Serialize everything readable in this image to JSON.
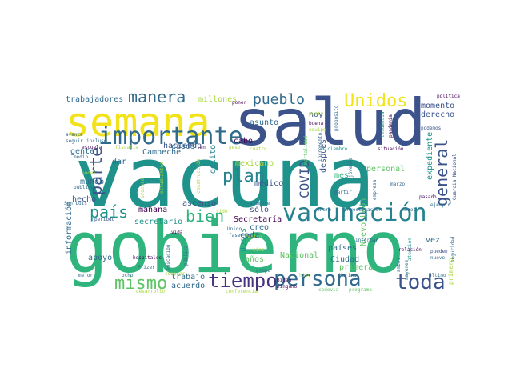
{
  "palette": {
    "yellow": "#f2e21a",
    "lime": "#a6d63d",
    "green": "#5cc463",
    "emerald": "#2fb47d",
    "teal": "#1f928c",
    "cyan": "#25828e",
    "steel": "#306b8e",
    "navy": "#3b528b",
    "indigo": "#46327e",
    "purple": "#440154"
  },
  "words": [
    {
      "text": "vacuna"
    },
    {
      "text": "gobierno"
    },
    {
      "text": "salud"
    },
    {
      "text": "semana"
    },
    {
      "text": "vacunación"
    },
    {
      "text": "importante"
    },
    {
      "text": "persona"
    },
    {
      "text": "tiempo"
    },
    {
      "text": "toda"
    },
    {
      "text": "mismo"
    },
    {
      "text": "manera"
    },
    {
      "text": "Unidos"
    },
    {
      "text": "pueblo"
    },
    {
      "text": "general"
    },
    {
      "text": "bien"
    },
    {
      "text": "plan"
    },
    {
      "text": "país"
    },
    {
      "text": "parte"
    },
    {
      "text": "COVID"
    },
    {
      "text": "millones"
    },
    {
      "text": "trabajadores"
    },
    {
      "text": "momento"
    },
    {
      "text": "derecho"
    },
    {
      "text": "expediente"
    },
    {
      "text": "haciendo"
    },
    {
      "text": "asunto"
    },
    {
      "text": "cabo"
    },
    {
      "text": "hoy"
    },
    {
      "text": "Campeche"
    },
    {
      "text": "mexicano"
    },
    {
      "text": "médico"
    },
    {
      "text": "después"
    },
    {
      "text": "personal"
    },
    {
      "text": "mes"
    },
    {
      "text": "gente"
    },
    {
      "text": "mundo"
    },
    {
      "text": "dar"
    },
    {
      "text": "hecho"
    },
    {
      "text": "mañana"
    },
    {
      "text": "secretario"
    },
    {
      "text": "ascenso"
    },
    {
      "text": "sólo"
    },
    {
      "text": "Secretaría"
    },
    {
      "text": "creo"
    },
    {
      "text": "cada"
    },
    {
      "text": "dosis"
    },
    {
      "text": "años"
    },
    {
      "text": "Nacional"
    },
    {
      "text": "países"
    },
    {
      "text": "Ciudad"
    },
    {
      "text": "primera"
    },
    {
      "text": "Nuevo León"
    },
    {
      "text": "vez"
    },
    {
      "text": "apoyo"
    },
    {
      "text": "acuerdo"
    },
    {
      "text": "trabajo"
    },
    {
      "text": "información"
    },
    {
      "text": "casos"
    },
    {
      "text": "delito"
    },
    {
      "text": "escuela"
    },
    {
      "text": "vida"
    },
    {
      "text": "fiscalía"
    },
    {
      "text": "buena"
    },
    {
      "text": "tendencia"
    },
    {
      "text": "situación"
    },
    {
      "text": "diciembre"
    },
    {
      "text": "cuatro"
    },
    {
      "text": "ejemplo"
    },
    {
      "text": "pasado"
    },
    {
      "text": "Guardia Nacional"
    },
    {
      "text": "marzo"
    },
    {
      "text": "empresa"
    },
    {
      "text": "jóvenes"
    },
    {
      "text": "partir"
    },
    {
      "text": "investigación"
    },
    {
      "text": "enero"
    },
    {
      "text": "menos"
    },
    {
      "text": "siempre"
    },
    {
      "text": "grupo"
    },
    {
      "text": "Biden"
    },
    {
      "text": "ninguno"
    },
    {
      "text": "Marina"
    },
    {
      "text": "informar"
    },
    {
      "text": "relación"
    },
    {
      "text": "atención"
    },
    {
      "text": "pueden"
    },
    {
      "text": "nuevo"
    },
    {
      "text": "último"
    },
    {
      "text": "primero"
    },
    {
      "text": "seguridad"
    },
    {
      "text": "educación"
    },
    {
      "text": "pública"
    },
    {
      "text": "Pfizer"
    },
    {
      "text": "hospitales"
    },
    {
      "text": "San Luis"
    },
    {
      "text": "periodo"
    },
    {
      "text": "mejor"
    },
    {
      "text": "ocho"
    },
    {
      "text": "avance"
    },
    {
      "text": "seguir"
    },
    {
      "text": "incluso"
    },
    {
      "text": "tan"
    },
    {
      "text": "poner"
    },
    {
      "text": "política"
    },
    {
      "text": "pandemia"
    },
    {
      "text": "propósito"
    },
    {
      "text": "equipo"
    },
    {
      "text": "punto"
    },
    {
      "text": "podemos"
    },
    {
      "text": "medio"
    },
    {
      "text": "público"
    },
    {
      "text": "poder"
    },
    {
      "text": "Unido"
    },
    {
      "text": "fase"
    },
    {
      "text": "sido"
    },
    {
      "text": "centro"
    },
    {
      "text": "sino"
    },
    {
      "text": "incremento"
    },
    {
      "text": "mortalidad"
    },
    {
      "text": "proceso"
    },
    {
      "text": "construcción"
    },
    {
      "text": "estudiantes"
    },
    {
      "text": "programa"
    },
    {
      "text": "codevia"
    },
    {
      "text": "conocer"
    },
    {
      "text": "peso"
    },
    {
      "text": "hizo"
    },
    {
      "text": "ambos"
    },
    {
      "text": "mayores"
    },
    {
      "text": "desarrollo"
    },
    {
      "text": "conferencia"
    }
  ]
}
